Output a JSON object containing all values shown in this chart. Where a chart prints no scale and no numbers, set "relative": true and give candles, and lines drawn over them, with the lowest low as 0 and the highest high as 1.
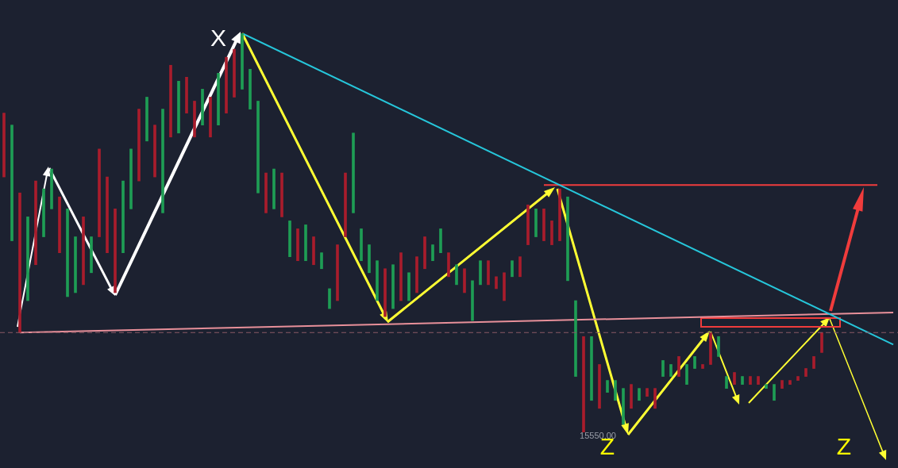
{
  "chart_data": {
    "type": "candlestick",
    "relative": true,
    "categories": [
      null,
      null,
      null,
      null,
      null,
      null,
      null,
      null,
      null,
      null,
      null,
      null,
      null,
      null,
      null,
      null,
      null,
      null,
      null,
      null,
      null,
      null,
      null,
      null,
      null,
      null,
      null,
      null,
      null,
      null,
      null,
      null,
      null,
      null,
      null,
      null,
      null,
      null,
      null,
      null,
      null,
      null,
      null,
      null,
      null,
      null,
      null,
      null,
      null,
      null,
      null,
      null,
      null,
      null,
      null,
      null,
      null,
      null,
      null,
      null,
      null,
      null,
      null,
      null,
      null,
      null,
      null,
      null,
      null,
      null,
      null,
      null,
      null,
      null,
      null,
      null,
      null,
      null,
      null,
      null,
      null,
      null,
      null,
      null,
      null,
      null,
      null,
      null,
      null,
      null,
      null,
      null,
      null,
      null,
      null,
      null,
      null,
      null,
      null,
      null,
      null,
      null,
      null,
      null,
      null,
      null,
      null,
      null,
      null,
      null,
      null,
      null,
      null
    ],
    "ohlc": [
      [
        0.8,
        0.8,
        0.64,
        0.64
      ],
      [
        0.48,
        0.77,
        0.48,
        0.77
      ],
      [
        0.6,
        0.6,
        0.25,
        0.25
      ],
      [
        0.33,
        0.54,
        0.33,
        0.54
      ],
      [
        0.63,
        0.63,
        0.42,
        0.42
      ],
      [
        0.49,
        0.61,
        0.49,
        0.61
      ],
      [
        0.56,
        0.66,
        0.56,
        0.66
      ],
      [
        0.59,
        0.59,
        0.45,
        0.45
      ],
      [
        0.34,
        0.56,
        0.34,
        0.56
      ],
      [
        0.35,
        0.49,
        0.35,
        0.49
      ],
      [
        0.54,
        0.54,
        0.37,
        0.37
      ],
      [
        0.4,
        0.49,
        0.4,
        0.49
      ],
      [
        0.71,
        0.71,
        0.49,
        0.49
      ],
      [
        0.64,
        0.64,
        0.45,
        0.45
      ],
      [
        0.56,
        0.56,
        0.35,
        0.35
      ],
      [
        0.45,
        0.63,
        0.45,
        0.63
      ],
      [
        0.56,
        0.71,
        0.56,
        0.71
      ],
      [
        0.81,
        0.81,
        0.63,
        0.63
      ],
      [
        0.73,
        0.84,
        0.73,
        0.84
      ],
      [
        0.77,
        0.77,
        0.64,
        0.64
      ],
      [
        0.55,
        0.81,
        0.55,
        0.81
      ],
      [
        0.92,
        0.92,
        0.74,
        0.74
      ],
      [
        0.75,
        0.88,
        0.75,
        0.88
      ],
      [
        0.89,
        0.89,
        0.8,
        0.8
      ],
      [
        0.83,
        0.83,
        0.74,
        0.74
      ],
      [
        0.77,
        0.86,
        0.77,
        0.86
      ],
      [
        0.84,
        0.84,
        0.74,
        0.74
      ],
      [
        0.77,
        0.9,
        0.77,
        0.9
      ],
      [
        0.94,
        0.94,
        0.8,
        0.8
      ],
      [
        0.96,
        0.96,
        0.84,
        0.84
      ],
      [
        0.86,
        1.0,
        0.86,
        1.0
      ],
      [
        0.81,
        0.91,
        0.81,
        0.91
      ],
      [
        0.6,
        0.83,
        0.6,
        0.83
      ],
      [
        0.65,
        0.65,
        0.55,
        0.55
      ],
      [
        0.56,
        0.66,
        0.56,
        0.66
      ],
      [
        0.65,
        0.65,
        0.54,
        0.54
      ],
      [
        0.44,
        0.53,
        0.44,
        0.53
      ],
      [
        0.51,
        0.51,
        0.43,
        0.43
      ],
      [
        0.43,
        0.52,
        0.43,
        0.52
      ],
      [
        0.49,
        0.49,
        0.42,
        0.42
      ],
      [
        0.41,
        0.45,
        0.41,
        0.45
      ],
      [
        0.31,
        0.36,
        0.31,
        0.36
      ],
      [
        0.47,
        0.47,
        0.33,
        0.33
      ],
      [
        0.65,
        0.65,
        0.49,
        0.49
      ],
      [
        0.55,
        0.75,
        0.55,
        0.75
      ],
      [
        0.43,
        0.51,
        0.43,
        0.51
      ],
      [
        0.4,
        0.47,
        0.4,
        0.47
      ],
      [
        0.33,
        0.43,
        0.33,
        0.43
      ],
      [
        0.41,
        0.41,
        0.29,
        0.29
      ],
      [
        0.31,
        0.42,
        0.31,
        0.42
      ],
      [
        0.45,
        0.45,
        0.33,
        0.33
      ],
      [
        0.33,
        0.4,
        0.33,
        0.4
      ],
      [
        0.44,
        0.44,
        0.35,
        0.35
      ],
      [
        0.49,
        0.49,
        0.41,
        0.41
      ],
      [
        0.43,
        0.47,
        0.43,
        0.47
      ],
      [
        0.45,
        0.51,
        0.45,
        0.51
      ],
      [
        0.45,
        0.45,
        0.39,
        0.39
      ],
      [
        0.37,
        0.42,
        0.37,
        0.42
      ],
      [
        0.41,
        0.41,
        0.35,
        0.35
      ],
      [
        0.28,
        0.38,
        0.28,
        0.38
      ],
      [
        0.37,
        0.43,
        0.37,
        0.43
      ],
      [
        0.43,
        0.43,
        0.37,
        0.37
      ],
      [
        0.39,
        0.39,
        0.36,
        0.36
      ],
      [
        0.4,
        0.4,
        0.33,
        0.33
      ],
      [
        0.39,
        0.43,
        0.39,
        0.43
      ],
      [
        0.44,
        0.44,
        0.39,
        0.39
      ],
      [
        0.57,
        0.57,
        0.47,
        0.47
      ],
      [
        0.49,
        0.56,
        0.49,
        0.56
      ],
      [
        0.56,
        0.56,
        0.48,
        0.48
      ],
      [
        0.53,
        0.53,
        0.47,
        0.47
      ],
      [
        0.61,
        0.61,
        0.48,
        0.48
      ],
      [
        0.38,
        0.59,
        0.38,
        0.59
      ],
      [
        0.14,
        0.33,
        0.14,
        0.33
      ],
      [
        0.24,
        0.24,
        0,
        0
      ],
      [
        0.08,
        0.24,
        0.08,
        0.24
      ],
      [
        0.17,
        0.17,
        0.06,
        0.06
      ],
      [
        0.1,
        0.13,
        0.1,
        0.13
      ],
      [
        0.08,
        0.13,
        0.08,
        0.13
      ],
      [
        0.02,
        0.11,
        0.02,
        0.11
      ],
      [
        0.12,
        0.12,
        0.06,
        0.06
      ],
      [
        0.08,
        0.11,
        0.08,
        0.11
      ],
      [
        0.11,
        0.11,
        0.09,
        0.09
      ],
      [
        0.11,
        0.11,
        0.06,
        0.06
      ],
      [
        0.14,
        0.18,
        0.14,
        0.18
      ],
      [
        0.14,
        0.17,
        0.14,
        0.17
      ],
      [
        0.19,
        0.19,
        0.14,
        0.14
      ],
      [
        0.12,
        0.17,
        0.12,
        0.17
      ],
      [
        0.16,
        0.19,
        0.16,
        0.19
      ],
      [
        0.17,
        0.17,
        0.16,
        0.16
      ],
      [
        0.25,
        0.25,
        0.17,
        0.17
      ],
      [
        0.19,
        0.24,
        0.19,
        0.24
      ],
      [
        0.11,
        0.14,
        0.11,
        0.14
      ],
      [
        0.15,
        0.15,
        0.12,
        0.12
      ],
      [
        0.12,
        0.14,
        0.12,
        0.14
      ],
      [
        0.14,
        0.14,
        0.12,
        0.12
      ],
      [
        0.14,
        0.14,
        0.12,
        0.12
      ],
      [
        0.11,
        0.12,
        0.11,
        0.12
      ],
      [
        0.08,
        0.12,
        0.08,
        0.12
      ],
      [
        0.13,
        0.13,
        0.11,
        0.11
      ],
      [
        0.13,
        0.13,
        0.12,
        0.12
      ],
      [
        0.14,
        0.14,
        0.13,
        0.13
      ],
      [
        0.16,
        0.16,
        0.14,
        0.14
      ],
      [
        0.19,
        0.19,
        0.16,
        0.16
      ],
      [
        0.25,
        0.25,
        0.2,
        0.2
      ],
      null,
      null,
      null,
      null,
      null,
      null,
      null,
      null,
      null
    ],
    "colors": [
      "#a91d2c",
      "#1f9d55",
      "#a91d2c",
      "#1f9d55",
      "#a91d2c",
      "#1f9d55",
      "#1f9d55",
      "#a91d2c",
      "#1f9d55",
      "#1f9d55",
      "#a91d2c",
      "#1f9d55",
      "#a91d2c",
      "#a91d2c",
      "#a91d2c",
      "#1f9d55",
      "#1f9d55",
      "#a91d2c",
      "#1f9d55",
      "#a91d2c",
      "#1f9d55",
      "#a91d2c",
      "#1f9d55",
      "#a91d2c",
      "#a91d2c",
      "#1f9d55",
      "#a91d2c",
      "#1f9d55",
      "#a91d2c",
      "#a91d2c",
      "#1f9d55",
      "#1f9d55",
      "#1f9d55",
      "#a91d2c",
      "#1f9d55",
      "#a91d2c",
      "#1f9d55",
      "#a91d2c",
      "#1f9d55",
      "#a91d2c",
      "#1f9d55",
      "#1f9d55",
      "#a91d2c",
      "#a91d2c",
      "#1f9d55",
      "#1f9d55",
      "#1f9d55",
      "#1f9d55",
      "#a91d2c",
      "#1f9d55",
      "#a91d2c",
      "#1f9d55",
      "#a91d2c",
      "#a91d2c",
      "#1f9d55",
      "#1f9d55",
      "#a91d2c",
      "#1f9d55",
      "#a91d2c",
      "#1f9d55",
      "#1f9d55",
      "#a91d2c",
      "#a91d2c",
      "#a91d2c",
      "#1f9d55",
      "#a91d2c",
      "#a91d2c",
      "#1f9d55",
      "#a91d2c",
      "#a91d2c",
      "#a91d2c",
      "#1f9d55",
      "#1f9d55",
      "#a91d2c",
      "#1f9d55",
      "#a91d2c",
      "#1f9d55",
      "#1f9d55",
      "#1f9d55",
      "#a91d2c",
      "#1f9d55",
      "#a91d2c",
      "#a91d2c",
      "#1f9d55",
      "#1f9d55",
      "#a91d2c",
      "#1f9d55",
      "#1f9d55",
      "#a91d2c",
      "#a91d2c",
      "#1f9d55",
      "#1f9d55",
      "#a91d2c",
      "#1f9d55",
      "#a91d2c",
      "#a91d2c",
      "#1f9d55",
      "#1f9d55",
      "#a91d2c",
      "#a91d2c",
      "#a91d2c",
      "#a91d2c",
      "#a91d2c",
      "#a91d2c",
      null,
      null,
      null,
      null,
      null,
      null,
      null,
      null,
      null
    ],
    "series": [
      {
        "type": "line",
        "values": [
          null,
          null,
          null,
          null,
          null,
          null,
          null,
          null,
          null,
          null,
          null,
          null,
          null,
          null,
          null,
          null,
          null,
          null,
          null,
          null,
          null,
          null,
          null,
          null,
          null,
          null,
          null,
          null,
          null,
          null,
          1.0,
          null,
          null,
          null,
          null,
          null,
          null,
          null,
          null,
          null,
          null,
          null,
          null,
          null,
          null,
          null,
          null,
          null,
          null,
          null,
          null,
          null,
          null,
          null,
          null,
          null,
          null,
          null,
          null,
          null,
          null,
          null,
          null,
          null,
          null,
          null,
          null,
          null,
          null,
          null,
          null,
          null,
          null,
          null,
          null,
          null,
          null,
          null,
          null,
          null,
          null,
          null,
          null,
          null,
          null,
          null,
          null,
          null,
          null,
          null,
          null,
          null,
          null,
          null,
          null,
          null,
          null,
          null,
          null,
          null,
          null,
          null,
          null,
          null,
          null,
          null,
          null,
          null,
          null,
          null,
          null,
          null,
          0.22
        ],
        "color": "#26c6da"
      },
      {
        "type": "line",
        "values": [
          null,
          null,
          0.25,
          null,
          null,
          null,
          null,
          null,
          null,
          null,
          null,
          null,
          null,
          null,
          null,
          null,
          null,
          null,
          null,
          null,
          null,
          null,
          null,
          null,
          null,
          null,
          null,
          null,
          null,
          null,
          null,
          null,
          null,
          null,
          null,
          null,
          null,
          null,
          null,
          null,
          null,
          null,
          null,
          null,
          null,
          null,
          null,
          null,
          null,
          null,
          null,
          null,
          null,
          null,
          null,
          null,
          null,
          null,
          null,
          null,
          null,
          null,
          null,
          null,
          null,
          null,
          null,
          null,
          null,
          null,
          null,
          null,
          null,
          null,
          null,
          null,
          null,
          null,
          null,
          null,
          null,
          null,
          null,
          null,
          null,
          null,
          null,
          null,
          null,
          null,
          null,
          null,
          null,
          null,
          null,
          null,
          null,
          null,
          null,
          null,
          null,
          null,
          null,
          null,
          null,
          null,
          null,
          null,
          null,
          null,
          null,
          null,
          0.3
        ],
        "color": "#e8909a"
      },
      {
        "type": "line",
        "values": [
          null,
          null,
          null,
          null,
          null,
          null,
          null,
          null,
          null,
          null,
          null,
          null,
          null,
          null,
          null,
          null,
          null,
          null,
          null,
          null,
          null,
          null,
          null,
          null,
          null,
          null,
          null,
          null,
          null,
          null,
          null,
          null,
          null,
          null,
          null,
          null,
          null,
          null,
          null,
          null,
          null,
          null,
          null,
          null,
          null,
          null,
          null,
          null,
          null,
          null,
          null,
          null,
          null,
          null,
          null,
          null,
          null,
          null,
          null,
          null,
          null,
          null,
          null,
          null,
          null,
          null,
          null,
          null,
          0.62,
          null,
          null,
          null,
          null,
          null,
          null,
          null,
          null,
          null,
          null,
          null,
          null,
          null,
          null,
          null,
          null,
          null,
          null,
          null,
          null,
          null,
          null,
          null,
          null,
          null,
          null,
          null,
          null,
          null,
          null,
          null,
          null,
          null,
          null,
          null,
          null,
          null,
          null,
          null,
          null,
          null,
          0.62,
          null,
          null
        ],
        "color": "#f03c3c"
      }
    ],
    "ref_lines": [
      {
        "axis": "y",
        "value": 0.25,
        "color": "#8a5a66",
        "line_style": "dashed"
      }
    ],
    "annotations": [
      "X",
      "Z",
      "Z",
      "15550.00"
    ]
  }
}
